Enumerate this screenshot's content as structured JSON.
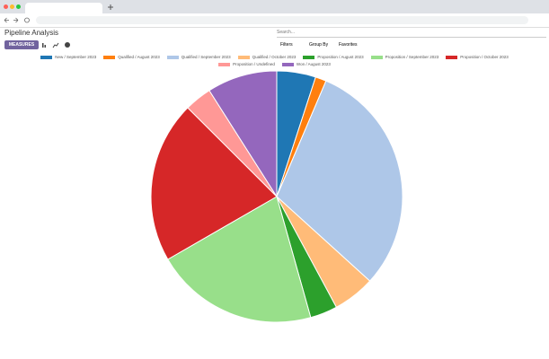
{
  "header": {
    "title": "Pipeline Analysis",
    "search_placeholder": "Search...",
    "measures": "MEASURES",
    "filters": "Filters",
    "group_by": "Group By",
    "favorites": "Favorites"
  },
  "chart_data": {
    "type": "pie",
    "categories": [
      "New / September 2023",
      "Qualified / August 2023",
      "Qualified / September 2023",
      "Qualified / October 2023",
      "Proposition / August 2023",
      "Proposition / September 2023",
      "Proposition / October 2023",
      "Proposition / Undefined",
      "Won / August 2023"
    ],
    "values": [
      5,
      1.4,
      30.3,
      5.4,
      3.5,
      21,
      20.8,
      3.5,
      9
    ],
    "colors": [
      "#1f77b4",
      "#ff7f0e",
      "#aec7e8",
      "#ffbb78",
      "#2ca02c",
      "#98df8a",
      "#d62728",
      "#ff9896",
      "#9467bd"
    ]
  }
}
